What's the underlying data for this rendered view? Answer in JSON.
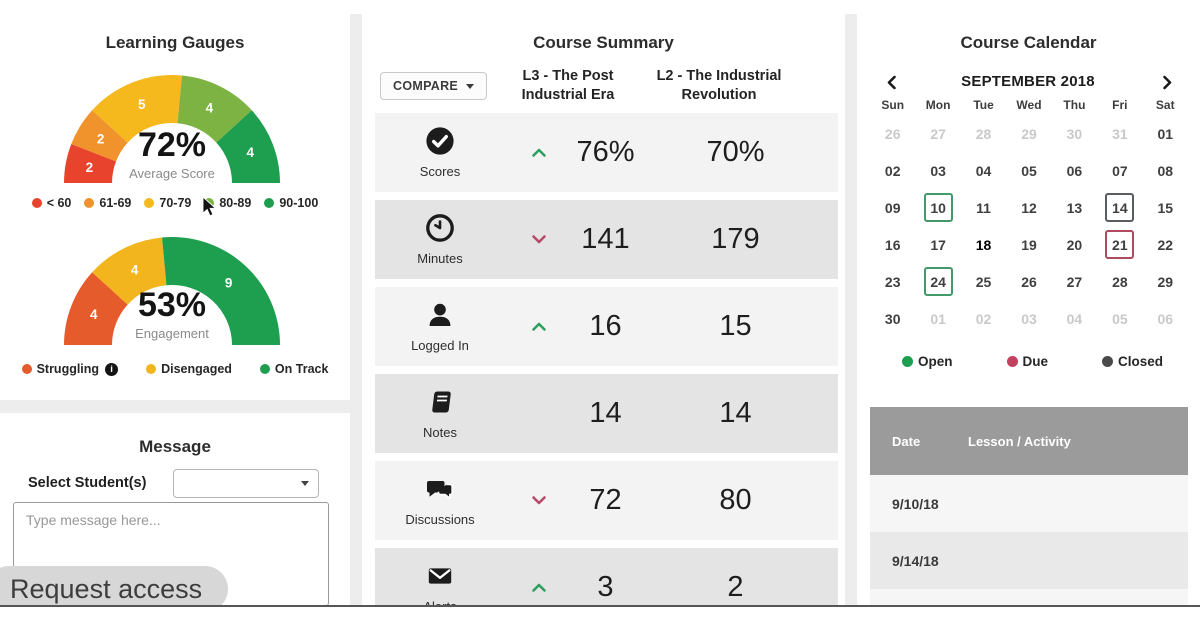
{
  "gauges": {
    "title": "Learning Gauges",
    "score_gauge": {
      "value_label": "72%",
      "caption": "Average Score",
      "segments": [
        {
          "label": "2",
          "value": 2,
          "color": "#e8432d"
        },
        {
          "label": "2",
          "value": 2,
          "color": "#f0932c"
        },
        {
          "label": "5",
          "value": 5,
          "color": "#f5b81d"
        },
        {
          "label": "4",
          "value": 4,
          "color": "#7cb342"
        },
        {
          "label": "4",
          "value": 4,
          "color": "#1e9e4f"
        }
      ],
      "legend": [
        {
          "label": "< 60",
          "color": "#e8432d"
        },
        {
          "label": "61-69",
          "color": "#f0932c"
        },
        {
          "label": "70-79",
          "color": "#f5b81d"
        },
        {
          "label": "80-89",
          "color": "#7cb342"
        },
        {
          "label": "90-100",
          "color": "#1e9e4f"
        }
      ]
    },
    "engagement_gauge": {
      "value_label": "53%",
      "caption": "Engagement",
      "segments": [
        {
          "label": "4",
          "value": 4,
          "color": "#e55b2b"
        },
        {
          "label": "4",
          "value": 4,
          "color": "#f2b51d"
        },
        {
          "label": "9",
          "value": 9,
          "color": "#1e9e4f"
        }
      ],
      "legend": [
        {
          "label": "Struggling",
          "color": "#e55b2b",
          "info": true
        },
        {
          "label": "Disengaged",
          "color": "#f2b51d"
        },
        {
          "label": "On Track",
          "color": "#1e9e4f"
        }
      ]
    }
  },
  "message": {
    "title": "Message",
    "select_label": "Select Student(s)",
    "select_value": "",
    "placeholder": "Type message here..."
  },
  "overlay": {
    "request_access": "Request access"
  },
  "summary": {
    "title": "Course Summary",
    "compare_label": "COMPARE",
    "columns": [
      "L3 - The Post Industrial Era",
      "L2 - The Industrial Revolution"
    ],
    "trend_colors": {
      "up": "#2e9e5e",
      "down": "#b9496b"
    },
    "rows": [
      {
        "label": "Scores",
        "icon": "check-circle",
        "trend": "up",
        "v1": "76%",
        "v2": "70%"
      },
      {
        "label": "Minutes",
        "icon": "clock",
        "trend": "down",
        "v1": "141",
        "v2": "179"
      },
      {
        "label": "Logged In",
        "icon": "person",
        "trend": "up",
        "v1": "16",
        "v2": "15"
      },
      {
        "label": "Notes",
        "icon": "book",
        "trend": "none",
        "v1": "14",
        "v2": "14"
      },
      {
        "label": "Discussions",
        "icon": "chat",
        "trend": "down",
        "v1": "72",
        "v2": "80"
      },
      {
        "label": "Alerts",
        "icon": "envelope",
        "trend": "up",
        "v1": "3",
        "v2": "2"
      }
    ]
  },
  "calendar": {
    "title": "Course Calendar",
    "month": "SEPTEMBER 2018",
    "weekdays": [
      "Sun",
      "Mon",
      "Tue",
      "Wed",
      "Thu",
      "Fri",
      "Sat"
    ],
    "weeks": [
      [
        {
          "d": "26",
          "muted": true
        },
        {
          "d": "27",
          "muted": true
        },
        {
          "d": "28",
          "muted": true
        },
        {
          "d": "29",
          "muted": true
        },
        {
          "d": "30",
          "muted": true
        },
        {
          "d": "31",
          "muted": true
        },
        {
          "d": "01"
        }
      ],
      [
        {
          "d": "02"
        },
        {
          "d": "03"
        },
        {
          "d": "04"
        },
        {
          "d": "05"
        },
        {
          "d": "06"
        },
        {
          "d": "07"
        },
        {
          "d": "08"
        }
      ],
      [
        {
          "d": "09"
        },
        {
          "d": "10",
          "box": "open"
        },
        {
          "d": "11"
        },
        {
          "d": "12"
        },
        {
          "d": "13"
        },
        {
          "d": "14",
          "box": "closed"
        },
        {
          "d": "15"
        }
      ],
      [
        {
          "d": "16"
        },
        {
          "d": "17"
        },
        {
          "d": "18",
          "today": true
        },
        {
          "d": "19"
        },
        {
          "d": "20"
        },
        {
          "d": "21",
          "box": "due"
        },
        {
          "d": "22"
        }
      ],
      [
        {
          "d": "23"
        },
        {
          "d": "24",
          "box": "open"
        },
        {
          "d": "25"
        },
        {
          "d": "26"
        },
        {
          "d": "27"
        },
        {
          "d": "28"
        },
        {
          "d": "29"
        }
      ],
      [
        {
          "d": "30"
        },
        {
          "d": "01",
          "muted": true
        },
        {
          "d": "02",
          "muted": true
        },
        {
          "d": "03",
          "muted": true
        },
        {
          "d": "04",
          "muted": true
        },
        {
          "d": "05",
          "muted": true
        },
        {
          "d": "06",
          "muted": true
        }
      ]
    ],
    "legend": [
      {
        "label": "Open",
        "color": "#1e9e4f"
      },
      {
        "label": "Due",
        "color": "#c2415e"
      },
      {
        "label": "Closed",
        "color": "#4a4a4a"
      }
    ],
    "table": {
      "headers": [
        "Date",
        "Lesson / Activity"
      ],
      "rows": [
        {
          "date": "9/10/18",
          "activity": ""
        },
        {
          "date": "9/14/18",
          "activity": ""
        }
      ]
    }
  }
}
